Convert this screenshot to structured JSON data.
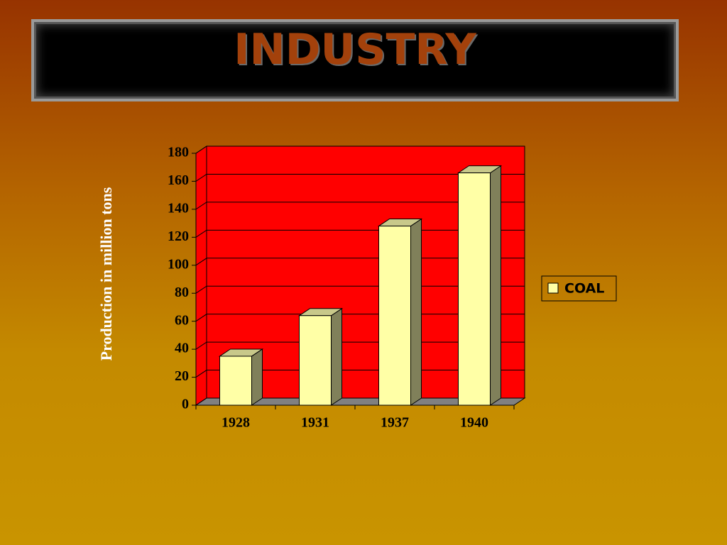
{
  "chart_data": {
    "type": "bar",
    "title": "INDUSTRY",
    "y_label": "Production in million tons",
    "categories": [
      "1928",
      "1931",
      "1937",
      "1940"
    ],
    "series": [
      {
        "name": "COAL",
        "color": "#ffffa6",
        "values": [
          35,
          64,
          128,
          166
        ]
      }
    ],
    "ylim": [
      0,
      180
    ],
    "yticks": [
      0,
      20,
      40,
      60,
      80,
      100,
      120,
      140,
      160,
      180
    ],
    "grid": true,
    "wall_color": "#ff0000",
    "legend": "right"
  }
}
